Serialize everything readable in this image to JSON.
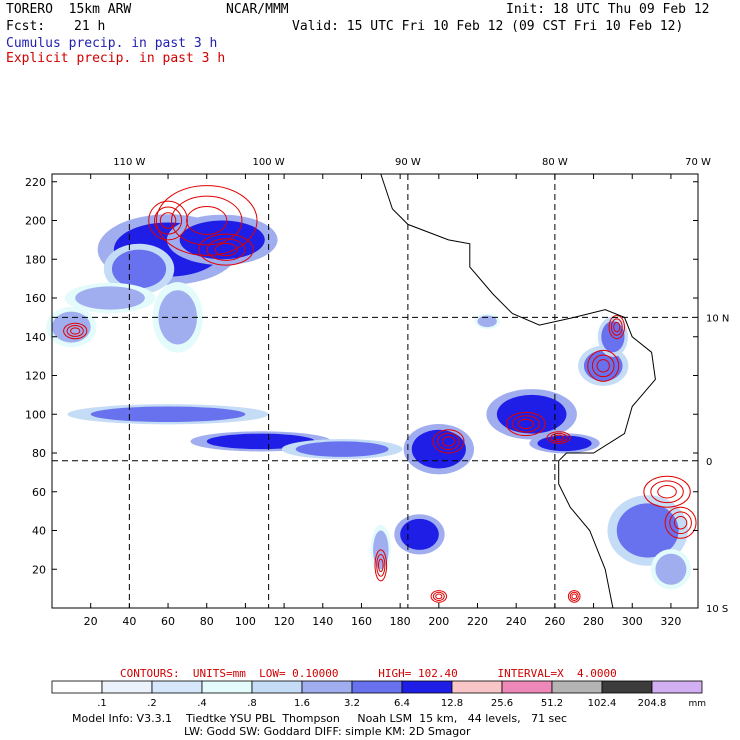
{
  "header": {
    "model": "TORERO  15km ARW",
    "org": "NCAR/MMM",
    "init": "Init: 18 UTC Thu 09 Feb 12",
    "fcst_label": "Fcst:",
    "fcst_value": "21 h",
    "valid": "Valid: 15 UTC Fri 10 Feb 12 (09 CST Fri 10 Feb 12)",
    "cumulus": "Cumulus precip. in past 3 h",
    "explicit": "Explicit precip. in past 3 h"
  },
  "colors": {
    "cumulus_text": "#1f1fb0",
    "explicit_text": "#d00000",
    "contour_line": "#e00000"
  },
  "chart_data": {
    "type": "heatmap",
    "title": "Cumulus precip. in past 3 h / Explicit precip. in past 3 h",
    "x_grid_ticks": [
      20,
      40,
      60,
      80,
      100,
      120,
      140,
      160,
      180,
      200,
      220,
      240,
      260,
      280,
      300,
      320
    ],
    "y_grid_ticks": [
      20,
      40,
      60,
      80,
      100,
      120,
      140,
      160,
      180,
      200,
      220
    ],
    "xlim": [
      0,
      334
    ],
    "ylim": [
      0,
      224
    ],
    "lon_labels": [
      {
        "label": "110 W",
        "x": 40
      },
      {
        "label": "100 W",
        "x": 112
      },
      {
        "label": "90 W",
        "x": 184
      },
      {
        "label": "80 W",
        "x": 260
      },
      {
        "label": "70 W",
        "x": 334
      }
    ],
    "lat_labels": [
      {
        "label": "10 N",
        "y": 150
      },
      {
        "label": "0",
        "y": 76
      },
      {
        "label": "10 S",
        "y": 0
      }
    ],
    "colorbar": {
      "levels": [
        ".1",
        ".2",
        ".4",
        ".8",
        "1.6",
        "3.2",
        "6.4",
        "12.8",
        "25.6",
        "51.2",
        "102.4",
        "204.8"
      ],
      "colors": [
        "#ffffff",
        "#ebf2fc",
        "#d6e6fb",
        "#e3fbfb",
        "#c5dcf6",
        "#a0aef0",
        "#6872ee",
        "#1e1ee6",
        "#f8c6c6",
        "#ee88b8",
        "#b4b4b4",
        "#3c3c3c",
        "#d2aef2"
      ],
      "unit": "mm"
    },
    "cumulus_regions": [
      {
        "x": 60,
        "y": 185,
        "rx": 28,
        "ry": 14,
        "level": 7
      },
      {
        "x": 88,
        "y": 190,
        "rx": 22,
        "ry": 10,
        "level": 7
      },
      {
        "x": 45,
        "y": 175,
        "rx": 14,
        "ry": 10,
        "level": 6
      },
      {
        "x": 30,
        "y": 160,
        "rx": 18,
        "ry": 6,
        "level": 5
      },
      {
        "x": 10,
        "y": 145,
        "rx": 10,
        "ry": 8,
        "level": 5
      },
      {
        "x": 65,
        "y": 150,
        "rx": 10,
        "ry": 14,
        "level": 5
      },
      {
        "x": 60,
        "y": 100,
        "rx": 40,
        "ry": 4,
        "level": 6
      },
      {
        "x": 108,
        "y": 86,
        "rx": 28,
        "ry": 4,
        "level": 7
      },
      {
        "x": 150,
        "y": 82,
        "rx": 24,
        "ry": 4,
        "level": 6
      },
      {
        "x": 200,
        "y": 82,
        "rx": 14,
        "ry": 10,
        "level": 7
      },
      {
        "x": 248,
        "y": 100,
        "rx": 18,
        "ry": 10,
        "level": 7
      },
      {
        "x": 265,
        "y": 85,
        "rx": 14,
        "ry": 4,
        "level": 7
      },
      {
        "x": 285,
        "y": 125,
        "rx": 10,
        "ry": 8,
        "level": 6
      },
      {
        "x": 290,
        "y": 140,
        "rx": 6,
        "ry": 8,
        "level": 6
      },
      {
        "x": 190,
        "y": 38,
        "rx": 10,
        "ry": 8,
        "level": 7
      },
      {
        "x": 308,
        "y": 40,
        "rx": 16,
        "ry": 14,
        "level": 6
      },
      {
        "x": 320,
        "y": 20,
        "rx": 8,
        "ry": 8,
        "level": 5
      },
      {
        "x": 170,
        "y": 30,
        "rx": 4,
        "ry": 10,
        "level": 5
      },
      {
        "x": 225,
        "y": 148,
        "rx": 5,
        "ry": 3,
        "level": 5
      }
    ],
    "explicit_contours": [
      {
        "x": 80,
        "y": 200,
        "rx": 26,
        "ry": 18
      },
      {
        "x": 60,
        "y": 200,
        "rx": 10,
        "ry": 10
      },
      {
        "x": 90,
        "y": 185,
        "rx": 14,
        "ry": 8
      },
      {
        "x": 12,
        "y": 143,
        "rx": 6,
        "ry": 4
      },
      {
        "x": 205,
        "y": 86,
        "rx": 8,
        "ry": 6
      },
      {
        "x": 245,
        "y": 95,
        "rx": 10,
        "ry": 6
      },
      {
        "x": 262,
        "y": 88,
        "rx": 6,
        "ry": 3
      },
      {
        "x": 285,
        "y": 125,
        "rx": 8,
        "ry": 8
      },
      {
        "x": 292,
        "y": 145,
        "rx": 4,
        "ry": 6
      },
      {
        "x": 318,
        "y": 60,
        "rx": 12,
        "ry": 8
      },
      {
        "x": 325,
        "y": 44,
        "rx": 8,
        "ry": 8
      },
      {
        "x": 170,
        "y": 22,
        "rx": 3,
        "ry": 8
      },
      {
        "x": 200,
        "y": 6,
        "rx": 4,
        "ry": 3
      },
      {
        "x": 270,
        "y": 6,
        "rx": 3,
        "ry": 3
      }
    ],
    "coastline": [
      [
        170,
        224
      ],
      [
        176,
        206
      ],
      [
        184,
        198
      ],
      [
        205,
        190
      ],
      [
        216,
        188
      ],
      [
        216,
        176
      ],
      [
        228,
        162
      ],
      [
        238,
        152
      ],
      [
        252,
        146
      ],
      [
        270,
        150
      ],
      [
        286,
        154
      ],
      [
        296,
        150
      ],
      [
        300,
        140
      ],
      [
        310,
        132
      ],
      [
        312,
        118
      ],
      [
        300,
        104
      ],
      [
        296,
        90
      ],
      [
        280,
        80
      ],
      [
        266,
        80
      ],
      [
        262,
        76
      ],
      [
        262,
        64
      ],
      [
        268,
        52
      ],
      [
        278,
        40
      ],
      [
        286,
        20
      ],
      [
        290,
        0
      ]
    ]
  },
  "contours_line": "CONTOURS:  UNITS=mm  LOW= 0.10000      HIGH= 102.40      INTERVAL=X  4.0000",
  "footer": {
    "line1": "Model Info: V3.3.1    Tiedtke YSU PBL  Thompson     Noah LSM  15 km,   44 levels,   71 sec",
    "line2": "LW: Godd SW: Goddard DIFF: simple KM: 2D Smagor"
  }
}
